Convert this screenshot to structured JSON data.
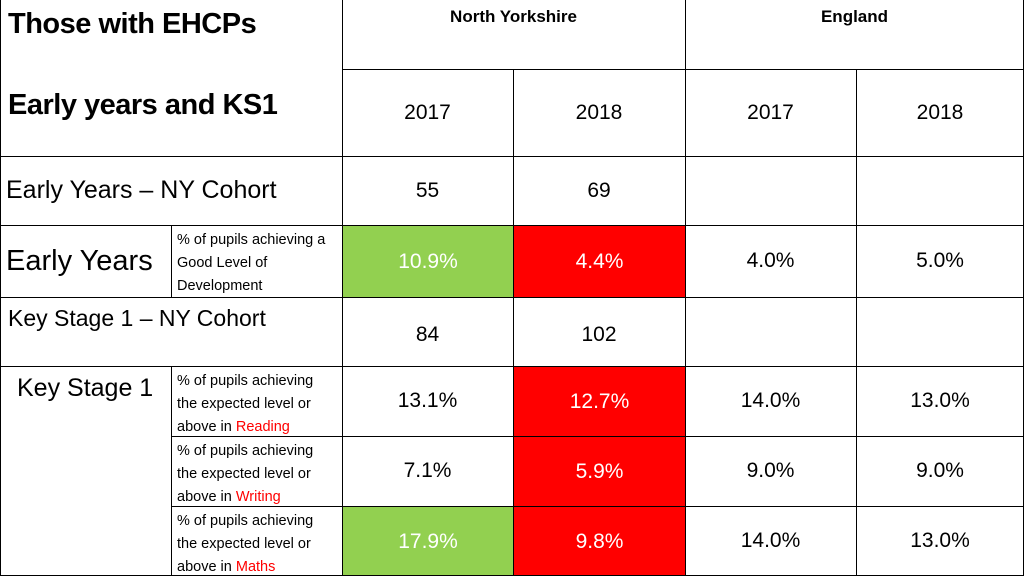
{
  "header": {
    "title_line1": "Those with EHCPs",
    "title_line2": "Early years and KS1",
    "region_north_yorkshire": "North Yorkshire",
    "region_england": "England",
    "years": [
      "2017",
      "2018",
      "2017",
      "2018"
    ]
  },
  "rows": {
    "ey_cohort": {
      "label": "Early Years – NY Cohort",
      "values": [
        "55",
        "69",
        "",
        ""
      ]
    },
    "early_years": {
      "label": "Early Years",
      "desc_lines": [
        "% of pupils achieving a",
        "Good Level of",
        "Development"
      ],
      "values": [
        "10.9%",
        "4.4%",
        "4.0%",
        "5.0%"
      ]
    },
    "ks1_cohort": {
      "label": "Key Stage 1 – NY Cohort",
      "values": [
        "84",
        "102",
        "",
        ""
      ]
    },
    "ks1": {
      "label": "Key Stage 1",
      "reading": {
        "desc_lines": [
          "% of pupils achieving",
          "the expected level or",
          "above in "
        ],
        "subject": "Reading",
        "values": [
          "13.1%",
          "12.7%",
          "14.0%",
          "13.0%"
        ]
      },
      "writing": {
        "desc_lines": [
          "% of pupils achieving",
          "the expected level or",
          "above in "
        ],
        "subject": "Writing",
        "values": [
          "7.1%",
          "5.9%",
          "9.0%",
          "9.0%"
        ]
      },
      "maths": {
        "desc_lines": [
          "% of pupils achieving",
          "the expected level or",
          "above in "
        ],
        "subject": "Maths",
        "values": [
          "17.9%",
          "9.8%",
          "14.0%",
          "13.0%"
        ]
      }
    }
  },
  "colors": {
    "green": "#92d050",
    "red": "#ff0000",
    "highlight_text": "#ff0000"
  }
}
